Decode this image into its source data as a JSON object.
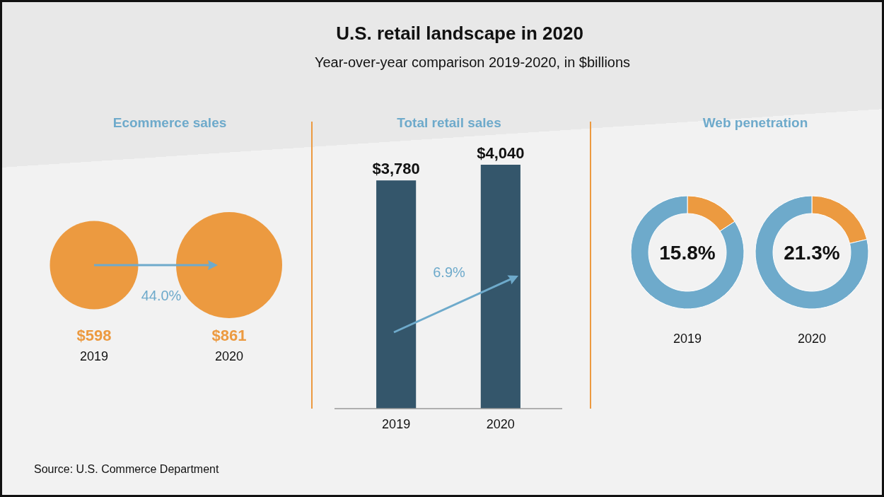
{
  "chart_data": [
    {
      "type": "other",
      "title": "U.S. retail landscape in 2020",
      "subtitle": "Year-over-year comparison 2019-2020, in $billions",
      "annotations": [
        "Source: U.S. Commerce Department"
      ]
    },
    {
      "type": "other",
      "title": "Ecommerce sales",
      "categories": [
        "2019",
        "2020"
      ],
      "values": [
        598,
        861
      ],
      "value_labels": [
        "$598",
        "$861"
      ],
      "color": "#ec9a40",
      "annotations": [
        "44.0%"
      ]
    },
    {
      "type": "bar",
      "title": "Total retail sales",
      "categories": [
        "2019",
        "2020"
      ],
      "values": [
        3780,
        4040
      ],
      "value_labels": [
        "$3,780",
        "$4,040"
      ],
      "color": "#34566b",
      "annotations": [
        "6.9%"
      ]
    },
    {
      "type": "donut",
      "title": "Web penetration",
      "xlabel": "2019",
      "categories": [
        null,
        null
      ],
      "values": [
        15.8,
        84.2
      ],
      "colors": [
        "#ec9a40",
        "#6eaacb"
      ],
      "annotations": [
        "15.8%"
      ]
    },
    {
      "type": "donut",
      "xlabel": "2020",
      "categories": [
        null,
        null
      ],
      "values": [
        21.3,
        78.7
      ],
      "colors": [
        "#ec9a40",
        "#6eaacb"
      ],
      "annotations": [
        "21.3%"
      ]
    }
  ]
}
